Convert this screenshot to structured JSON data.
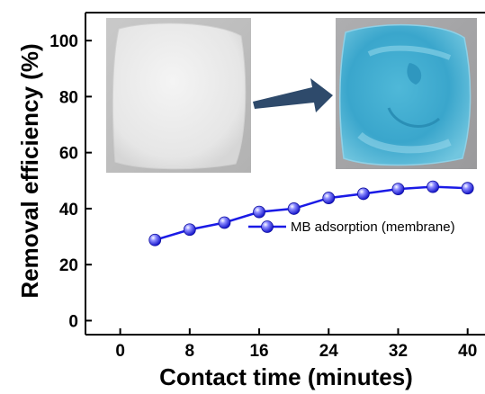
{
  "chart_data": {
    "type": "line",
    "xlabel": "Contact time (minutes)",
    "ylabel": "Removal efficiency (%)",
    "xlim": [
      -4,
      42
    ],
    "ylim": [
      -5,
      110
    ],
    "x_ticks": [
      0,
      8,
      16,
      24,
      32,
      40
    ],
    "y_ticks": [
      0,
      20,
      40,
      60,
      80,
      100
    ],
    "grid": false,
    "legend_position": "middle-right",
    "series": [
      {
        "name": "MB adsorption (membrane)",
        "color": "#1a1ae6",
        "marker": "sphere",
        "x": [
          4,
          8,
          12,
          16,
          20,
          24,
          28,
          32,
          36,
          40
        ],
        "y": [
          28.8,
          32.5,
          35.0,
          38.8,
          40.0,
          43.8,
          45.3,
          47.0,
          47.8,
          47.3
        ]
      }
    ],
    "inset_images": [
      {
        "name": "white-membrane-photo",
        "depicts": "white membrane before adsorption"
      },
      {
        "name": "blue-membrane-photo",
        "depicts": "blue membrane after MB adsorption"
      }
    ],
    "arrow_color": "#2e4a6b"
  }
}
